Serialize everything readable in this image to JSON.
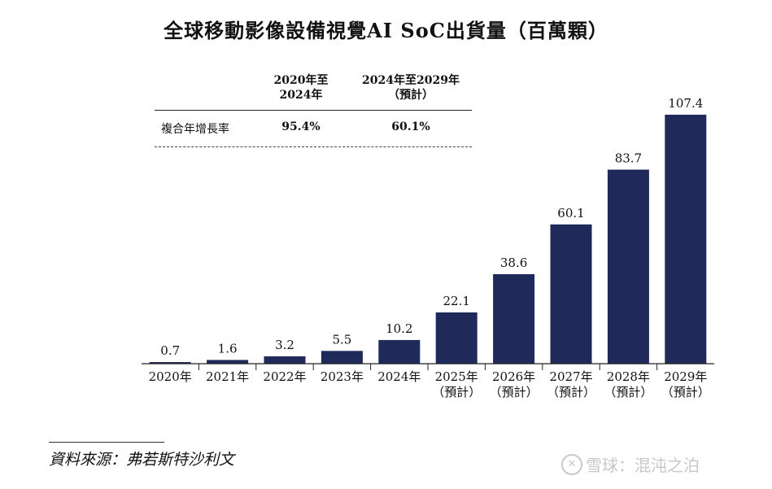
{
  "title": "全球移動影像設備視覺AI SoC出貨量（百萬顆）",
  "cagr_table": {
    "col1_header": [
      "2020年至",
      "2024年"
    ],
    "col2_header": [
      "2024年至2029年",
      "（預計）"
    ],
    "row_label": "複合年增長率",
    "col1_value": "95.4%",
    "col2_value": "60.1%"
  },
  "source": "資料來源：弗若斯特沙利文",
  "watermark": "雪球：混沌之泊",
  "chart_data": {
    "type": "bar",
    "categories": [
      "2020年",
      "2021年",
      "2022年",
      "2023年",
      "2024年",
      "2025年",
      "2026年",
      "2027年",
      "2028年",
      "2029年"
    ],
    "category_sublabels": [
      "",
      "",
      "",
      "",
      "",
      "（預計）",
      "（預計）",
      "（預計）",
      "（預計）",
      "（預計）"
    ],
    "values": [
      0.7,
      1.6,
      3.2,
      5.5,
      10.2,
      22.1,
      38.6,
      60.1,
      83.7,
      107.4
    ],
    "value_labels": [
      "0.7",
      "1.6",
      "3.2",
      "5.5",
      "10.2",
      "22.1",
      "38.6",
      "60.1",
      "83.7",
      "107.4"
    ],
    "unit": "百萬顆",
    "bar_color": "#1f2a5b",
    "axis_color": "#222222",
    "ylim": [
      0,
      107.4
    ],
    "grid": false
  }
}
